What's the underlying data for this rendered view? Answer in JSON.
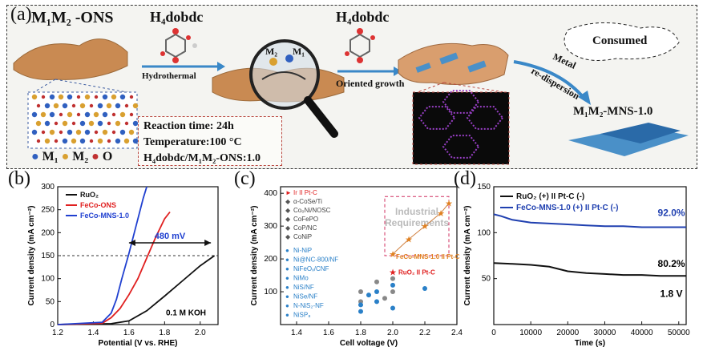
{
  "panel_a": {
    "label": "(a)",
    "precursor_title": "M₁M₂ -ONS",
    "ligand_label_1": "H₄dobdc",
    "ligand_label_2": "H₄dobdc",
    "arrow_hydrothermal": "Hydrothermal",
    "arrow_oriented": "Oriented growth",
    "arrow_metal_1": "Metal",
    "arrow_metal_2": "re-dispersion",
    "consumed_label": "Consumed",
    "product_label": "M₁M₂-MNS-1.0",
    "lens_m1": "M₁",
    "lens_m2": "M₂",
    "conditions": {
      "reaction_time": "Reaction time: 24h",
      "temperature": "Temperature:100 °C",
      "ratio": "H₄dobdc/M₁M₂-ONS:1.0"
    },
    "lattice_legend": {
      "m1": "M₁",
      "m2": "M₂",
      "o": "O"
    },
    "colors": {
      "sheet": "#c98a52",
      "sheet_blue": "#4a90c8",
      "m1": "#3060c0",
      "m2": "#d9a030",
      "o": "#c03030"
    }
  },
  "panel_b": {
    "label": "(b)",
    "chart_data": {
      "type": "line",
      "xlabel": "Potential (V vs. RHE)",
      "ylabel": "Current density (mA cm⁻²)",
      "xlim": [
        1.2,
        2.1
      ],
      "ylim": [
        0,
        300
      ],
      "xticks": [
        "1.2",
        "1.4",
        "1.6",
        "1.8",
        "2.0"
      ],
      "yticks": [
        "0",
        "50",
        "100",
        "150",
        "200",
        "250",
        "300"
      ],
      "series": [
        {
          "name": "RuO₂",
          "color": "#111111",
          "x": [
            1.2,
            1.5,
            1.6,
            1.7,
            1.8,
            1.9,
            2.0,
            2.08
          ],
          "y": [
            0,
            2,
            8,
            30,
            62,
            95,
            128,
            150
          ]
        },
        {
          "name": "FeCo-ONS",
          "color": "#e02020",
          "x": [
            1.2,
            1.45,
            1.5,
            1.55,
            1.6,
            1.65,
            1.7,
            1.75,
            1.8,
            1.83
          ],
          "y": [
            0,
            3,
            15,
            35,
            65,
            100,
            145,
            190,
            230,
            245
          ]
        },
        {
          "name": "FeCo-MNS-1.0",
          "color": "#2040d0",
          "x": [
            1.2,
            1.45,
            1.5,
            1.53,
            1.56,
            1.6,
            1.64,
            1.68,
            1.7
          ],
          "y": [
            0,
            5,
            25,
            55,
            100,
            155,
            215,
            275,
            300
          ]
        }
      ],
      "annotations": [
        "480 mV",
        "0.1 M KOH"
      ],
      "reference_line_y": 150
    }
  },
  "panel_c": {
    "label": "(c)",
    "industrial_box": "Industrial Requirements",
    "chart_data": {
      "type": "scatter",
      "xlabel": "Cell voltage (V)",
      "ylabel": "Current density (mA cm⁻²)",
      "xlim": [
        1.3,
        2.4
      ],
      "ylim": [
        0,
        420
      ],
      "xticks": [
        "1.4",
        "1.6",
        "1.8",
        "2.0",
        "2.2",
        "2.4"
      ],
      "yticks": [
        "100",
        "200",
        "300",
        "400"
      ],
      "legend_group_1": [
        "Ir II Pt-C",
        "α-CoSe/Ti",
        "Co₀Ni/NOSC",
        "CoFePO",
        "CoP/NC",
        "CoNiP"
      ],
      "legend_group_2": [
        "Ni-NiP",
        "Ni@NC-800/NF",
        "NiFeOₓ/CNF",
        "NiMo",
        "NiS/NF",
        "NiSe/NF",
        "N-NiS₂-NF",
        "NiSP₈"
      ],
      "points_legend1": [
        {
          "x": 1.8,
          "y": 100
        },
        {
          "x": 1.8,
          "y": 70
        },
        {
          "x": 1.9,
          "y": 130
        },
        {
          "x": 2.0,
          "y": 140
        },
        {
          "x": 2.0,
          "y": 100
        },
        {
          "x": 1.95,
          "y": 80
        }
      ],
      "points_legend2": [
        {
          "x": 1.8,
          "y": 40
        },
        {
          "x": 1.8,
          "y": 60
        },
        {
          "x": 1.9,
          "y": 70
        },
        {
          "x": 1.9,
          "y": 100
        },
        {
          "x": 2.0,
          "y": 50
        },
        {
          "x": 2.0,
          "y": 120
        },
        {
          "x": 2.2,
          "y": 110
        },
        {
          "x": 1.85,
          "y": 90
        }
      ],
      "feco_series": {
        "name": "FeCo-MNS-1.0 II Pt-C",
        "x": [
          2.0,
          2.1,
          2.2,
          2.3,
          2.35
        ],
        "y": [
          215,
          260,
          300,
          340,
          370
        ]
      },
      "ruo2_point": {
        "name": "RuO₂ II Pt-C",
        "x": 2.0,
        "y": 160
      }
    }
  },
  "panel_d": {
    "label": "(d)",
    "chart_data": {
      "type": "line",
      "xlabel": "Time (s)",
      "ylabel": "Current density (mA cm⁻²)",
      "xlim": [
        0,
        52000
      ],
      "ylim": [
        0,
        150
      ],
      "xticks": [
        "0",
        "10000",
        "20000",
        "30000",
        "40000",
        "50000"
      ],
      "yticks": [
        "50",
        "100",
        "150"
      ],
      "series": [
        {
          "name": "RuO₂ (+) II Pt-C (-)",
          "color": "#111111",
          "x": [
            0,
            5000,
            10000,
            15000,
            20000,
            25000,
            30000,
            35000,
            40000,
            45000,
            52000
          ],
          "y": [
            67,
            66,
            65,
            63,
            58,
            56,
            55,
            54,
            54,
            53,
            53
          ]
        },
        {
          "name": "FeCo-MNS-1.0 (+) II Pt-C (-)",
          "color": "#2040b0",
          "x": [
            0,
            2000,
            5000,
            10000,
            15000,
            20000,
            25000,
            30000,
            35000,
            40000,
            45000,
            52000
          ],
          "y": [
            120,
            118,
            114,
            111,
            110,
            109,
            108,
            107,
            107,
            106,
            106,
            106
          ]
        }
      ],
      "annotations": [
        "92.0%",
        "80.2%",
        "1.8 V"
      ]
    }
  }
}
